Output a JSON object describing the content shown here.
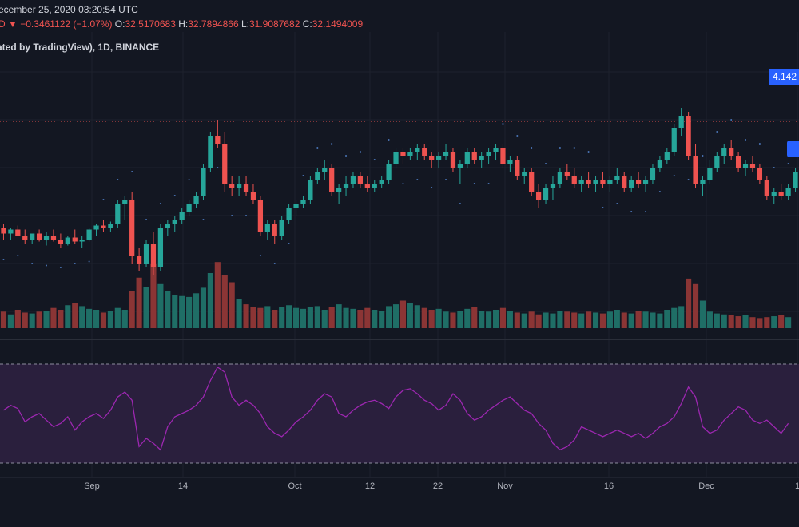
{
  "header": {
    "datetime": "ecember 25, 2020 03:20:54 UTC",
    "change_prefix": "D",
    "change_arrow": "▼",
    "change": "−0.3461122 (−1.07%)",
    "open_label": "O:",
    "open": "32.5170683",
    "high_label": "H:",
    "high": "32.7894866",
    "low_label": "L:",
    "low": "31.9087682",
    "close_label": "C:",
    "close": "32.1494009",
    "indicator_line": "ated by TradingView), 1D, BINANCE"
  },
  "price_badge_top": "4.142",
  "price_badge_mid": "",
  "colors": {
    "up": "#26a69a",
    "down": "#ef5350",
    "up_volume": "#1f6e66",
    "down_volume": "#8b3535",
    "rsi_line": "#9c27b0",
    "rsi_band": "#2a1f3d",
    "sar_dots": "#4a74b5",
    "background": "#131722"
  },
  "chart_data": {
    "type": "candlestick",
    "title": "",
    "x_labels": [
      "Sep",
      "14",
      "Oct",
      "12",
      "22",
      "Nov",
      "16",
      "Dec",
      "1"
    ],
    "candles": [
      {
        "o": 58,
        "h": 60,
        "l": 52,
        "c": 55
      },
      {
        "o": 55,
        "h": 58,
        "l": 52,
        "c": 57
      },
      {
        "o": 57,
        "h": 59,
        "l": 54,
        "c": 54
      },
      {
        "o": 54,
        "h": 57,
        "l": 50,
        "c": 52
      },
      {
        "o": 52,
        "h": 55,
        "l": 50,
        "c": 55
      },
      {
        "o": 55,
        "h": 57,
        "l": 51,
        "c": 52
      },
      {
        "o": 52,
        "h": 56,
        "l": 49,
        "c": 54
      },
      {
        "o": 54,
        "h": 57,
        "l": 51,
        "c": 52
      },
      {
        "o": 52,
        "h": 55,
        "l": 48,
        "c": 50
      },
      {
        "o": 50,
        "h": 54,
        "l": 49,
        "c": 53
      },
      {
        "o": 53,
        "h": 57,
        "l": 50,
        "c": 51
      },
      {
        "o": 51,
        "h": 54,
        "l": 48,
        "c": 52
      },
      {
        "o": 52,
        "h": 58,
        "l": 51,
        "c": 57
      },
      {
        "o": 57,
        "h": 60,
        "l": 54,
        "c": 59
      },
      {
        "o": 59,
        "h": 62,
        "l": 56,
        "c": 58
      },
      {
        "o": 58,
        "h": 61,
        "l": 56,
        "c": 60
      },
      {
        "o": 60,
        "h": 72,
        "l": 58,
        "c": 70
      },
      {
        "o": 70,
        "h": 74,
        "l": 62,
        "c": 72
      },
      {
        "o": 72,
        "h": 76,
        "l": 40,
        "c": 44
      },
      {
        "o": 44,
        "h": 48,
        "l": 36,
        "c": 40
      },
      {
        "o": 40,
        "h": 52,
        "l": 38,
        "c": 50
      },
      {
        "o": 50,
        "h": 56,
        "l": 34,
        "c": 38
      },
      {
        "o": 38,
        "h": 60,
        "l": 36,
        "c": 58
      },
      {
        "o": 58,
        "h": 62,
        "l": 54,
        "c": 60
      },
      {
        "o": 60,
        "h": 64,
        "l": 56,
        "c": 62
      },
      {
        "o": 62,
        "h": 68,
        "l": 60,
        "c": 66
      },
      {
        "o": 66,
        "h": 72,
        "l": 64,
        "c": 70
      },
      {
        "o": 70,
        "h": 76,
        "l": 68,
        "c": 74
      },
      {
        "o": 74,
        "h": 90,
        "l": 72,
        "c": 88
      },
      {
        "o": 88,
        "h": 106,
        "l": 86,
        "c": 104
      },
      {
        "o": 104,
        "h": 112,
        "l": 98,
        "c": 100
      },
      {
        "o": 100,
        "h": 106,
        "l": 76,
        "c": 80
      },
      {
        "o": 80,
        "h": 84,
        "l": 74,
        "c": 78
      },
      {
        "o": 78,
        "h": 84,
        "l": 74,
        "c": 80
      },
      {
        "o": 80,
        "h": 84,
        "l": 74,
        "c": 76
      },
      {
        "o": 76,
        "h": 80,
        "l": 70,
        "c": 72
      },
      {
        "o": 72,
        "h": 74,
        "l": 54,
        "c": 56
      },
      {
        "o": 56,
        "h": 62,
        "l": 52,
        "c": 60
      },
      {
        "o": 60,
        "h": 62,
        "l": 50,
        "c": 54
      },
      {
        "o": 54,
        "h": 64,
        "l": 52,
        "c": 62
      },
      {
        "o": 62,
        "h": 70,
        "l": 60,
        "c": 68
      },
      {
        "o": 68,
        "h": 72,
        "l": 64,
        "c": 70
      },
      {
        "o": 70,
        "h": 74,
        "l": 68,
        "c": 72
      },
      {
        "o": 72,
        "h": 84,
        "l": 70,
        "c": 82
      },
      {
        "o": 82,
        "h": 88,
        "l": 80,
        "c": 86
      },
      {
        "o": 86,
        "h": 92,
        "l": 82,
        "c": 88
      },
      {
        "o": 88,
        "h": 90,
        "l": 74,
        "c": 76
      },
      {
        "o": 76,
        "h": 80,
        "l": 70,
        "c": 78
      },
      {
        "o": 78,
        "h": 84,
        "l": 74,
        "c": 80
      },
      {
        "o": 80,
        "h": 86,
        "l": 78,
        "c": 84
      },
      {
        "o": 84,
        "h": 86,
        "l": 78,
        "c": 80
      },
      {
        "o": 80,
        "h": 84,
        "l": 76,
        "c": 78
      },
      {
        "o": 78,
        "h": 82,
        "l": 76,
        "c": 80
      },
      {
        "o": 80,
        "h": 84,
        "l": 78,
        "c": 82
      },
      {
        "o": 82,
        "h": 92,
        "l": 80,
        "c": 90
      },
      {
        "o": 90,
        "h": 98,
        "l": 88,
        "c": 96
      },
      {
        "o": 96,
        "h": 98,
        "l": 90,
        "c": 94
      },
      {
        "o": 94,
        "h": 98,
        "l": 92,
        "c": 96
      },
      {
        "o": 96,
        "h": 100,
        "l": 92,
        "c": 98
      },
      {
        "o": 98,
        "h": 100,
        "l": 92,
        "c": 94
      },
      {
        "o": 94,
        "h": 96,
        "l": 88,
        "c": 92
      },
      {
        "o": 92,
        "h": 96,
        "l": 88,
        "c": 94
      },
      {
        "o": 94,
        "h": 100,
        "l": 92,
        "c": 96
      },
      {
        "o": 96,
        "h": 98,
        "l": 86,
        "c": 88
      },
      {
        "o": 88,
        "h": 92,
        "l": 80,
        "c": 90
      },
      {
        "o": 90,
        "h": 98,
        "l": 88,
        "c": 96
      },
      {
        "o": 96,
        "h": 98,
        "l": 90,
        "c": 92
      },
      {
        "o": 92,
        "h": 96,
        "l": 88,
        "c": 94
      },
      {
        "o": 94,
        "h": 98,
        "l": 90,
        "c": 96
      },
      {
        "o": 96,
        "h": 100,
        "l": 92,
        "c": 98
      },
      {
        "o": 98,
        "h": 100,
        "l": 88,
        "c": 90
      },
      {
        "o": 90,
        "h": 94,
        "l": 86,
        "c": 92
      },
      {
        "o": 92,
        "h": 94,
        "l": 82,
        "c": 84
      },
      {
        "o": 84,
        "h": 88,
        "l": 80,
        "c": 86
      },
      {
        "o": 86,
        "h": 88,
        "l": 74,
        "c": 76
      },
      {
        "o": 76,
        "h": 80,
        "l": 68,
        "c": 72
      },
      {
        "o": 72,
        "h": 80,
        "l": 70,
        "c": 78
      },
      {
        "o": 78,
        "h": 84,
        "l": 72,
        "c": 80
      },
      {
        "o": 80,
        "h": 88,
        "l": 78,
        "c": 86
      },
      {
        "o": 86,
        "h": 90,
        "l": 82,
        "c": 84
      },
      {
        "o": 84,
        "h": 88,
        "l": 78,
        "c": 80
      },
      {
        "o": 80,
        "h": 84,
        "l": 76,
        "c": 82
      },
      {
        "o": 82,
        "h": 86,
        "l": 78,
        "c": 80
      },
      {
        "o": 80,
        "h": 84,
        "l": 76,
        "c": 82
      },
      {
        "o": 82,
        "h": 86,
        "l": 78,
        "c": 80
      },
      {
        "o": 80,
        "h": 84,
        "l": 76,
        "c": 82
      },
      {
        "o": 82,
        "h": 88,
        "l": 80,
        "c": 84
      },
      {
        "o": 84,
        "h": 86,
        "l": 76,
        "c": 78
      },
      {
        "o": 78,
        "h": 84,
        "l": 76,
        "c": 82
      },
      {
        "o": 82,
        "h": 86,
        "l": 78,
        "c": 80
      },
      {
        "o": 80,
        "h": 84,
        "l": 76,
        "c": 82
      },
      {
        "o": 82,
        "h": 90,
        "l": 80,
        "c": 88
      },
      {
        "o": 88,
        "h": 94,
        "l": 86,
        "c": 92
      },
      {
        "o": 92,
        "h": 98,
        "l": 90,
        "c": 96
      },
      {
        "o": 96,
        "h": 110,
        "l": 94,
        "c": 108
      },
      {
        "o": 108,
        "h": 118,
        "l": 104,
        "c": 114
      },
      {
        "o": 114,
        "h": 116,
        "l": 92,
        "c": 94
      },
      {
        "o": 94,
        "h": 100,
        "l": 78,
        "c": 80
      },
      {
        "o": 80,
        "h": 84,
        "l": 74,
        "c": 82
      },
      {
        "o": 82,
        "h": 92,
        "l": 80,
        "c": 88
      },
      {
        "o": 88,
        "h": 96,
        "l": 86,
        "c": 94
      },
      {
        "o": 94,
        "h": 100,
        "l": 90,
        "c": 98
      },
      {
        "o": 98,
        "h": 102,
        "l": 92,
        "c": 94
      },
      {
        "o": 94,
        "h": 96,
        "l": 86,
        "c": 88
      },
      {
        "o": 88,
        "h": 92,
        "l": 84,
        "c": 90
      },
      {
        "o": 90,
        "h": 94,
        "l": 86,
        "c": 88
      },
      {
        "o": 88,
        "h": 90,
        "l": 80,
        "c": 82
      },
      {
        "o": 82,
        "h": 84,
        "l": 72,
        "c": 74
      },
      {
        "o": 74,
        "h": 78,
        "l": 70,
        "c": 76
      },
      {
        "o": 76,
        "h": 80,
        "l": 72,
        "c": 74
      },
      {
        "o": 74,
        "h": 80,
        "l": 72,
        "c": 78
      },
      {
        "o": 78,
        "h": 88,
        "l": 76,
        "c": 86
      }
    ],
    "volume": [
      18,
      15,
      20,
      17,
      16,
      18,
      19,
      22,
      20,
      25,
      27,
      24,
      21,
      20,
      17,
      19,
      22,
      20,
      40,
      55,
      45,
      70,
      48,
      40,
      36,
      35,
      34,
      38,
      44,
      60,
      72,
      58,
      50,
      32,
      26,
      23,
      22,
      24,
      20,
      23,
      25,
      22,
      21,
      23,
      24,
      20,
      23,
      26,
      22,
      21,
      20,
      22,
      20,
      19,
      24,
      26,
      30,
      27,
      25,
      22,
      20,
      21,
      18,
      17,
      19,
      21,
      23,
      19,
      18,
      20,
      22,
      19,
      17,
      16,
      18,
      15,
      17,
      16,
      19,
      18,
      17,
      16,
      18,
      17,
      16,
      18,
      20,
      17,
      16,
      19,
      18,
      17,
      16,
      20,
      22,
      24,
      54,
      48,
      30,
      18,
      16,
      15,
      14,
      13,
      14,
      12,
      11,
      12,
      13,
      14,
      12
    ],
    "rsi": [
      52,
      55,
      53,
      45,
      48,
      50,
      46,
      42,
      44,
      48,
      40,
      45,
      48,
      50,
      47,
      52,
      60,
      63,
      58,
      30,
      35,
      32,
      28,
      42,
      48,
      50,
      52,
      55,
      60,
      70,
      78,
      75,
      60,
      55,
      58,
      55,
      50,
      42,
      38,
      36,
      40,
      45,
      48,
      52,
      58,
      62,
      60,
      50,
      48,
      52,
      55,
      57,
      58,
      56,
      53,
      60,
      64,
      65,
      62,
      58,
      56,
      52,
      55,
      62,
      58,
      50,
      46,
      48,
      52,
      55,
      58,
      60,
      56,
      52,
      50,
      44,
      40,
      32,
      28,
      30,
      34,
      42,
      40,
      38,
      36,
      38,
      40,
      38,
      36,
      38,
      35,
      38,
      42,
      44,
      48,
      56,
      66,
      60,
      42,
      38,
      40,
      46,
      50,
      54,
      52,
      46,
      44,
      46,
      42,
      38,
      44
    ]
  }
}
